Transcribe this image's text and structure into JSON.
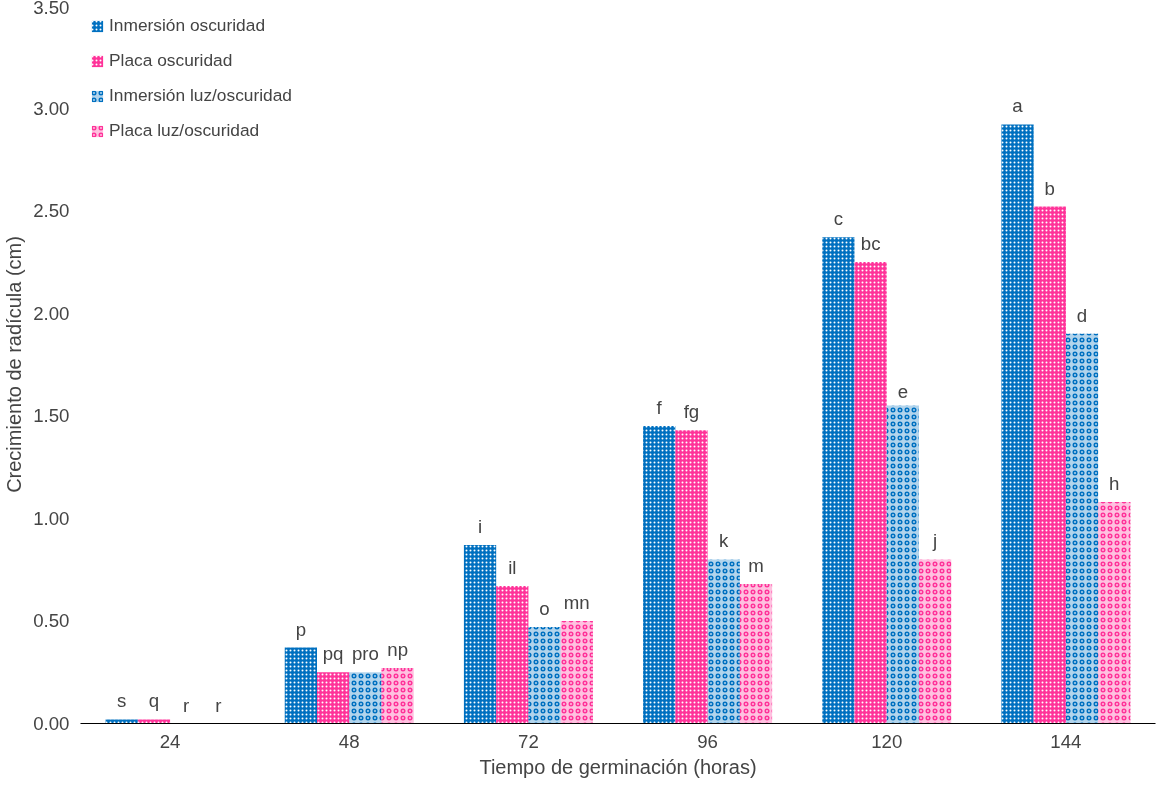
{
  "chart_data": {
    "type": "bar",
    "xlabel": "Tiempo de germinación (horas)",
    "ylabel": "Crecimiento de radícula (cm)",
    "categories": [
      "24",
      "48",
      "72",
      "96",
      "120",
      "144"
    ],
    "series": [
      {
        "name": "Inmersión oscuridad",
        "color": "#0070c0",
        "values": [
          0.02,
          0.37,
          0.87,
          1.45,
          2.37,
          2.92
        ]
      },
      {
        "name": "Placa oscuridad",
        "color": "#ff3399",
        "values": [
          0.02,
          0.25,
          0.67,
          1.43,
          2.25,
          2.52
        ]
      },
      {
        "name": "Inmersión luz/oscuridad",
        "color": "#0070c0",
        "values": [
          0,
          0.25,
          0.47,
          0.8,
          1.55,
          1.9
        ]
      },
      {
        "name": "Placa luz/oscuridad",
        "color": "#ff3399",
        "values": [
          0,
          0.27,
          0.5,
          0.68,
          0.8,
          1.08
        ]
      }
    ],
    "ylim": [
      0,
      3.5
    ],
    "yticks": [
      {
        "value": 0,
        "label": "0.00"
      },
      {
        "value": 0.5,
        "label": "0.50"
      },
      {
        "value": 1,
        "label": "1.00"
      },
      {
        "value": 1.5,
        "label": "1.50"
      },
      {
        "value": 2,
        "label": "2.00"
      },
      {
        "value": 2.5,
        "label": "2.50"
      },
      {
        "value": 3,
        "label": "3.00"
      },
      {
        "value": 3.5,
        "label": "3.50"
      }
    ],
    "grid": false,
    "legend": "top left",
    "annotations": [
      "s",
      "q",
      "r",
      "r",
      "p",
      "pq",
      "pro",
      "np",
      "i",
      "il",
      "o",
      "mn",
      "f",
      "fg",
      "k",
      "m",
      "c",
      "bc",
      "e",
      "j",
      "a",
      "b",
      "d",
      "h"
    ]
  }
}
